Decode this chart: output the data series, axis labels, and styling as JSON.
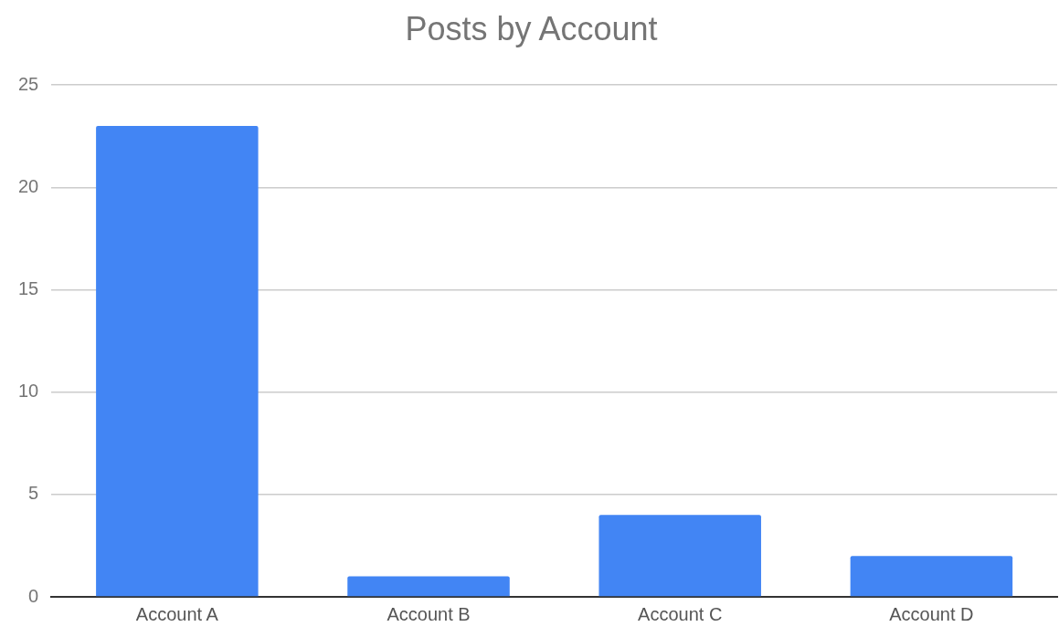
{
  "chart_data": {
    "type": "bar",
    "title": "Posts by Account",
    "categories": [
      "Account A",
      "Account B",
      "Account C",
      "Account D"
    ],
    "values": [
      23,
      1,
      4,
      2
    ],
    "color": "#4285f4",
    "ylim": [
      0,
      25
    ],
    "yticks": [
      0,
      5,
      10,
      15,
      20,
      25
    ],
    "grid": "y",
    "legend": false
  }
}
